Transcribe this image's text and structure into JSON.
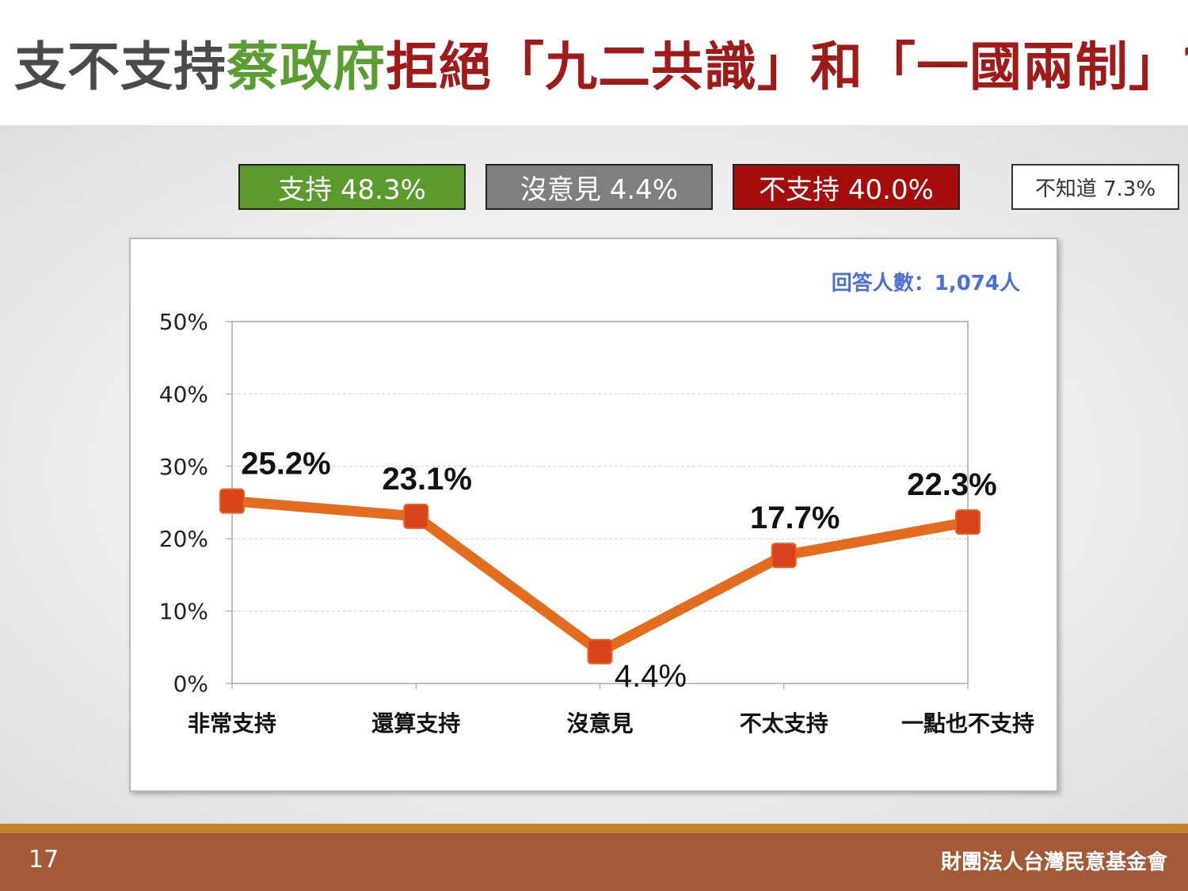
{
  "title": {
    "part1": "支不支持",
    "part2": "蔡政府",
    "part3": "拒絕「九二共識」和「一國兩制」?"
  },
  "legend": {
    "support": "支持 48.3%",
    "neutral": "沒意見 4.4%",
    "oppose": "不支持 40.0%",
    "unknown": "不知道 7.3%"
  },
  "colors": {
    "support": "#5b9a2c",
    "neutral": "#7f7f7f",
    "oppose": "#a50d0d",
    "line": "#e46c1e",
    "marker": "#d9431a",
    "note": "#4a6fd6"
  },
  "chart_data": {
    "type": "line",
    "note": "回答人數：1,074人",
    "categories": [
      "非常支持",
      "還算支持",
      "沒意見",
      "不太支持",
      "一點也不支持"
    ],
    "values": [
      25.2,
      23.1,
      4.4,
      17.7,
      22.3
    ],
    "data_labels": [
      "25.2%",
      "23.1%",
      "4.4%",
      "17.7%",
      "22.3%"
    ],
    "yticks": [
      "0%",
      "10%",
      "20%",
      "30%",
      "40%",
      "50%"
    ],
    "ylim": [
      0,
      50
    ],
    "grid": true,
    "legend": "none"
  },
  "footer": {
    "page_number": "17",
    "organization": "財團法人台灣民意基金會"
  }
}
